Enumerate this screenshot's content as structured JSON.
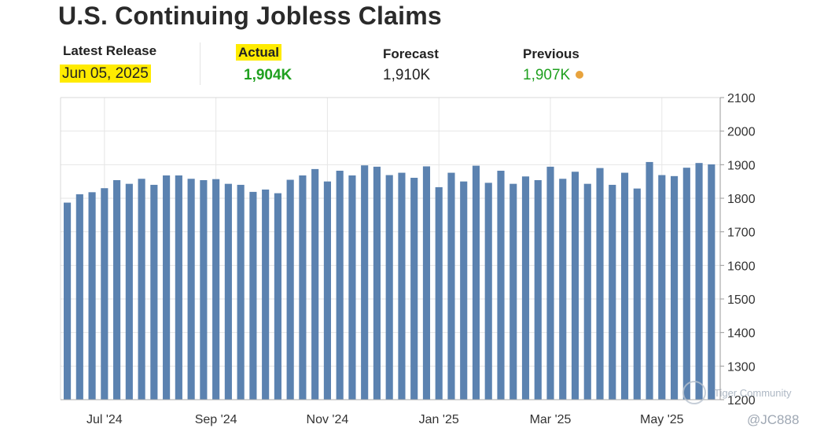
{
  "page": {
    "title": "U.S. Continuing Jobless Claims"
  },
  "summary": {
    "latest_release_label": "Latest Release",
    "latest_release_value": "Jun 05, 2025",
    "actual_label": "Actual",
    "actual_value": "1,904K",
    "forecast_label": "Forecast",
    "forecast_value": "1,910K",
    "previous_label": "Previous",
    "previous_value": "1,907K"
  },
  "colors": {
    "bar": "#5b82b0",
    "highlight": "#ffeb00",
    "positive": "#1fa01f",
    "previous_dot": "#e8a33d",
    "grid": "#e6e6e6"
  },
  "watermark": {
    "text": "Tiger Community",
    "handle": "@JC888"
  },
  "chart_data": {
    "type": "bar",
    "title": "",
    "xlabel": "",
    "ylabel": "",
    "ylim": [
      1200,
      2100
    ],
    "yticks": [
      1200,
      1300,
      1400,
      1500,
      1600,
      1700,
      1800,
      1900,
      2000,
      2100
    ],
    "y_axis_position": "right",
    "grid": true,
    "x_tick_labels": [
      "Jul '24",
      "Sep '24",
      "Nov '24",
      "Jan '25",
      "Mar '25",
      "May '25"
    ],
    "x_tick_bar_index": [
      3,
      12,
      21,
      30,
      39,
      48
    ],
    "values": [
      1787,
      1812,
      1818,
      1830,
      1854,
      1843,
      1858,
      1840,
      1868,
      1868,
      1858,
      1854,
      1857,
      1843,
      1840,
      1819,
      1826,
      1815,
      1855,
      1868,
      1887,
      1850,
      1882,
      1868,
      1898,
      1894,
      1869,
      1876,
      1861,
      1895,
      1833,
      1876,
      1850,
      1897,
      1846,
      1882,
      1843,
      1865,
      1854,
      1894,
      1858,
      1879,
      1843,
      1890,
      1840,
      1876,
      1829,
      1908,
      1869,
      1866,
      1891,
      1905,
      1901
    ]
  }
}
